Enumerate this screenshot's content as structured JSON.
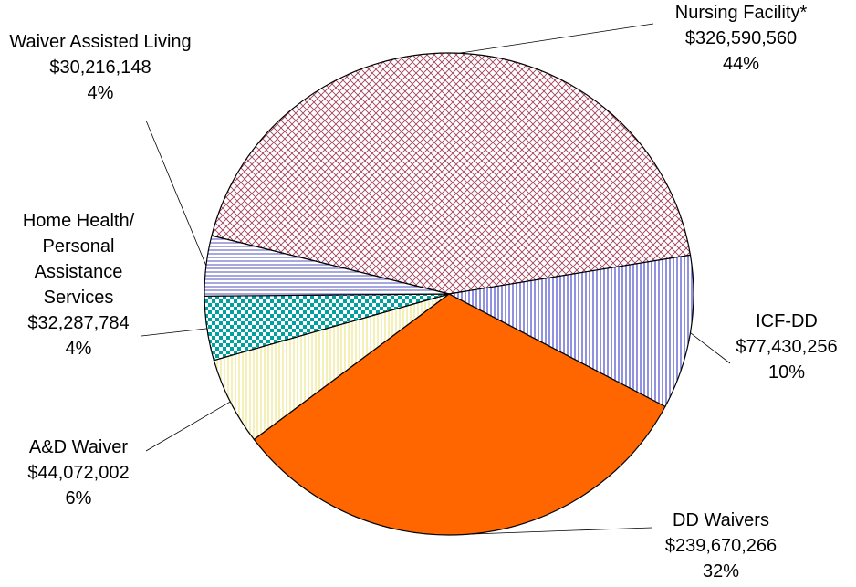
{
  "chart_data": {
    "type": "pie",
    "categories": [
      "Nursing Facility*",
      "ICF-DD",
      "DD Waivers",
      "A&D Waiver",
      "Home Health/\nPersonal\nAssistance\nServices",
      "Waiver Assisted Living"
    ],
    "values": [
      326590560,
      77430256,
      239670266,
      44072002,
      32287784,
      30216148
    ],
    "value_labels": [
      "$326,590,560",
      "$77,430,256",
      "$239,670,266",
      "$44,072,002",
      "$32,287,784",
      "$30,216,148"
    ],
    "percent_labels": [
      "44%",
      "10%",
      "32%",
      "6%",
      "4%",
      "4%"
    ],
    "colors": [
      "#a0405a",
      "#4a4ad0",
      "#ff6600",
      "#e8e070",
      "#00a0a0",
      "#5050c0"
    ]
  }
}
